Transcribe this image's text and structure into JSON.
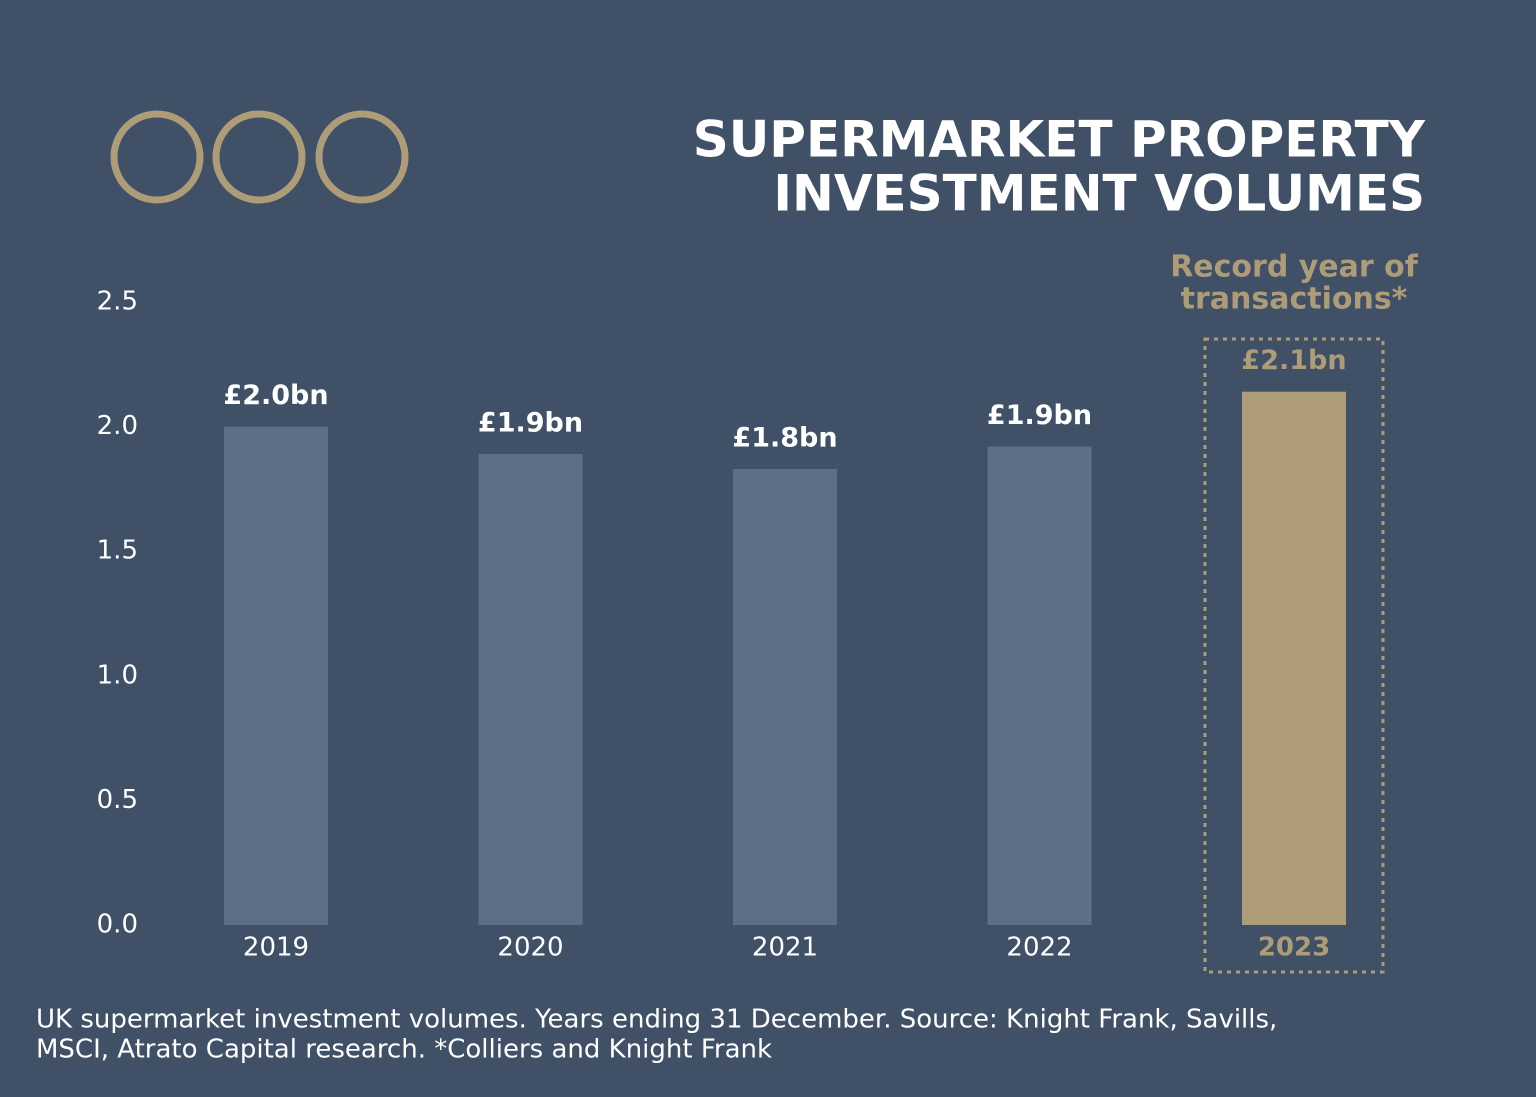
{
  "chart_data": {
    "type": "bar",
    "title": [
      "SUPERMARKET PROPERTY",
      "INVESTMENT VOLUMES"
    ],
    "annotation": [
      "Record year of",
      "transactions*"
    ],
    "categories": [
      "2019",
      "2020",
      "2021",
      "2022",
      "2023"
    ],
    "values": [
      2.0,
      1.89,
      1.83,
      1.92,
      2.14
    ],
    "value_labels": [
      "£2.0bn",
      "£1.9bn",
      "£1.8bn",
      "£1.9bn",
      "£2.1bn"
    ],
    "colors": [
      "#5d6f87",
      "#5d6f87",
      "#5d6f87",
      "#5d6f87",
      "#ae9c78"
    ],
    "ylim": [
      0,
      2.5
    ],
    "yticks": [
      {
        "value": 0,
        "label": "0.0"
      },
      0.5,
      {
        "value": 1,
        "label": "1.0"
      },
      1.5,
      {
        "value": 2,
        "label": "2.0"
      },
      2.5
    ],
    "grid": false,
    "footnote": [
      "UK supermarket investment volumes. Years ending 31 December. Source: Knight Frank, Savills,",
      "MSCI, Atrato Capital research. *Colliers and Knight Frank"
    ]
  }
}
